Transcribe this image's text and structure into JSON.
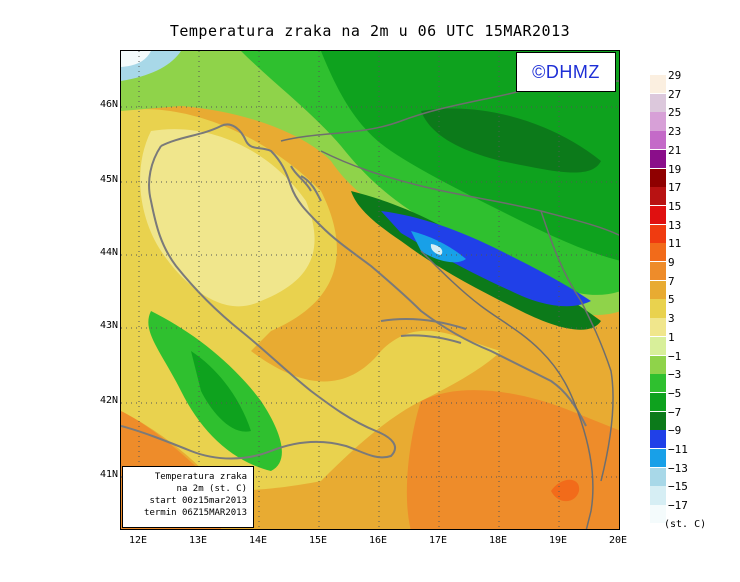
{
  "title": "Temperatura zraka na 2m u 06 UTC 15MAR2013",
  "watermark": "©DHMZ",
  "info_box": {
    "line1": "Temperatura zraka",
    "line2": "na 2m (st. C)",
    "line3": "start 00z15mar2013",
    "line4": "termin 06Z15MAR2013"
  },
  "latitude_labels": [
    "46N",
    "45N",
    "44N",
    "43N",
    "42N",
    "41N"
  ],
  "longitude_labels": [
    "12E",
    "13E",
    "14E",
    "15E",
    "16E",
    "17E",
    "18E",
    "19E",
    "20E"
  ],
  "legend": {
    "unit": "(st. C)",
    "values": [
      "29",
      "27",
      "25",
      "23",
      "21",
      "19",
      "17",
      "15",
      "13",
      "11",
      "9",
      "7",
      "5",
      "3",
      "1",
      "−1",
      "−3",
      "−5",
      "−7",
      "−9",
      "−11",
      "−13",
      "−15",
      "−17"
    ],
    "colors": [
      "#fbefe0",
      "#dcc8dc",
      "#d7a0d7",
      "#c46ac8",
      "#8a0e8a",
      "#8f0000",
      "#b81212",
      "#e01010",
      "#f03b10",
      "#f26b1a",
      "#ee8c2a",
      "#e8ab32",
      "#e9d24e",
      "#f0e68c",
      "#d8ef9a",
      "#8fd34a",
      "#2fc02f",
      "#0ea21e",
      "#0c7a1a",
      "#2040e8",
      "#18a0e8",
      "#a8d8e8",
      "#d6eef4",
      "#f4fbfc"
    ]
  },
  "colors": {
    "coast": "#7a7a7a",
    "border": "#6e6e6e",
    "grid": "#555555"
  }
}
